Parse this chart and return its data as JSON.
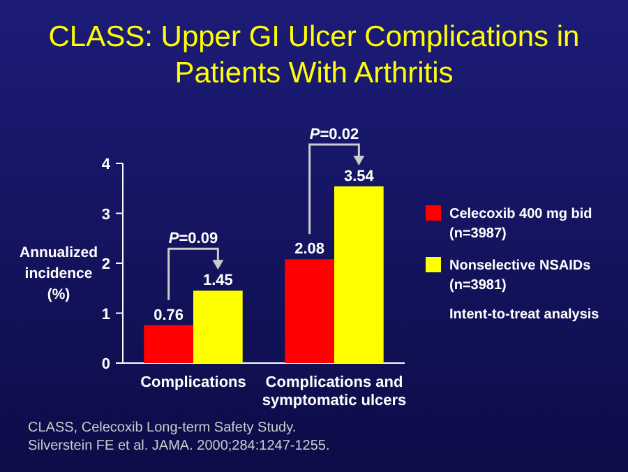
{
  "chart_data": {
    "type": "bar",
    "title": "CLASS: Upper GI Ulcer Complications in Patients With Arthritis",
    "ylabel": "Annualized incidence (%)",
    "categories": [
      "Complications",
      "Complications and symptomatic ulcers"
    ],
    "series": [
      {
        "name": "Celecoxib 400 mg bid (n=3987)",
        "color": "#ff0000",
        "values": [
          0.76,
          2.08
        ]
      },
      {
        "name": "Nonselective NSAIDs (n=3981)",
        "color": "#ffff00",
        "values": [
          1.45,
          3.54
        ]
      }
    ],
    "ylim": [
      0,
      4
    ],
    "yticks": [
      0,
      1,
      2,
      3,
      4
    ],
    "data_labels": true,
    "legend": "right",
    "annotations": [
      "P=0.09",
      "P=0.02",
      "Intent-to-treat analysis",
      "CLASS, Celecoxib Long-term Safety Study.",
      "Silverstein FE et al. JAMA. 2000;284:1247-1255."
    ]
  }
}
